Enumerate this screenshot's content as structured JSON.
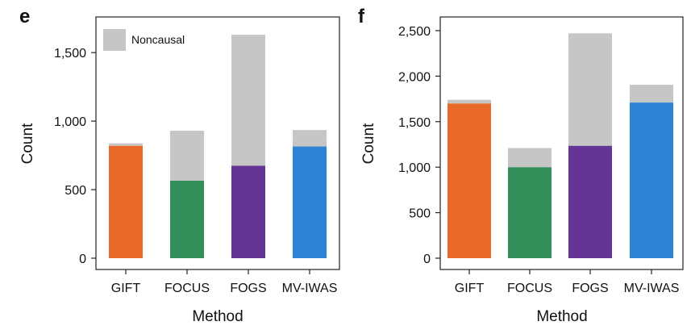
{
  "panels": [
    {
      "letter": "e",
      "legend_label": "Noncausal",
      "chart_data": {
        "type": "bar",
        "stacked": true,
        "categories": [
          "GIFT",
          "FOCUS",
          "FOGS",
          "MV-IWAS"
        ],
        "series": [
          {
            "values": [
              820,
              565,
              675,
              815
            ],
            "colors": [
              "#e8692a",
              "#338f5a",
              "#643594",
              "#2f83d5"
            ]
          },
          {
            "name": "Noncausal",
            "values": [
              18,
              365,
              955,
              120
            ],
            "color": "#c6c6c6"
          }
        ],
        "xlabel": "Method",
        "ylabel": "Count",
        "ylim": [
          0,
          1760
        ],
        "yticks": [
          0,
          500,
          1000,
          1500
        ],
        "ytick_labels": [
          "0",
          "500",
          "1,000",
          "1,500"
        ],
        "legend": "top-left",
        "grid": false
      }
    },
    {
      "letter": "f",
      "chart_data": {
        "type": "bar",
        "stacked": true,
        "categories": [
          "GIFT",
          "FOCUS",
          "FOGS",
          "MV-IWAS"
        ],
        "series": [
          {
            "values": [
              1700,
              1000,
              1235,
              1710
            ],
            "colors": [
              "#e8692a",
              "#338f5a",
              "#643594",
              "#2f83d5"
            ]
          },
          {
            "name": "Noncausal",
            "values": [
              40,
              210,
              1235,
              195
            ],
            "color": "#c6c6c6"
          }
        ],
        "xlabel": "Method",
        "ylabel": "Count",
        "ylim": [
          0,
          2650
        ],
        "yticks": [
          0,
          500,
          1000,
          1500,
          2000,
          2500
        ],
        "ytick_labels": [
          "0",
          "500",
          "1,000",
          "1,500",
          "2,000",
          "2,500"
        ],
        "grid": false
      }
    }
  ]
}
